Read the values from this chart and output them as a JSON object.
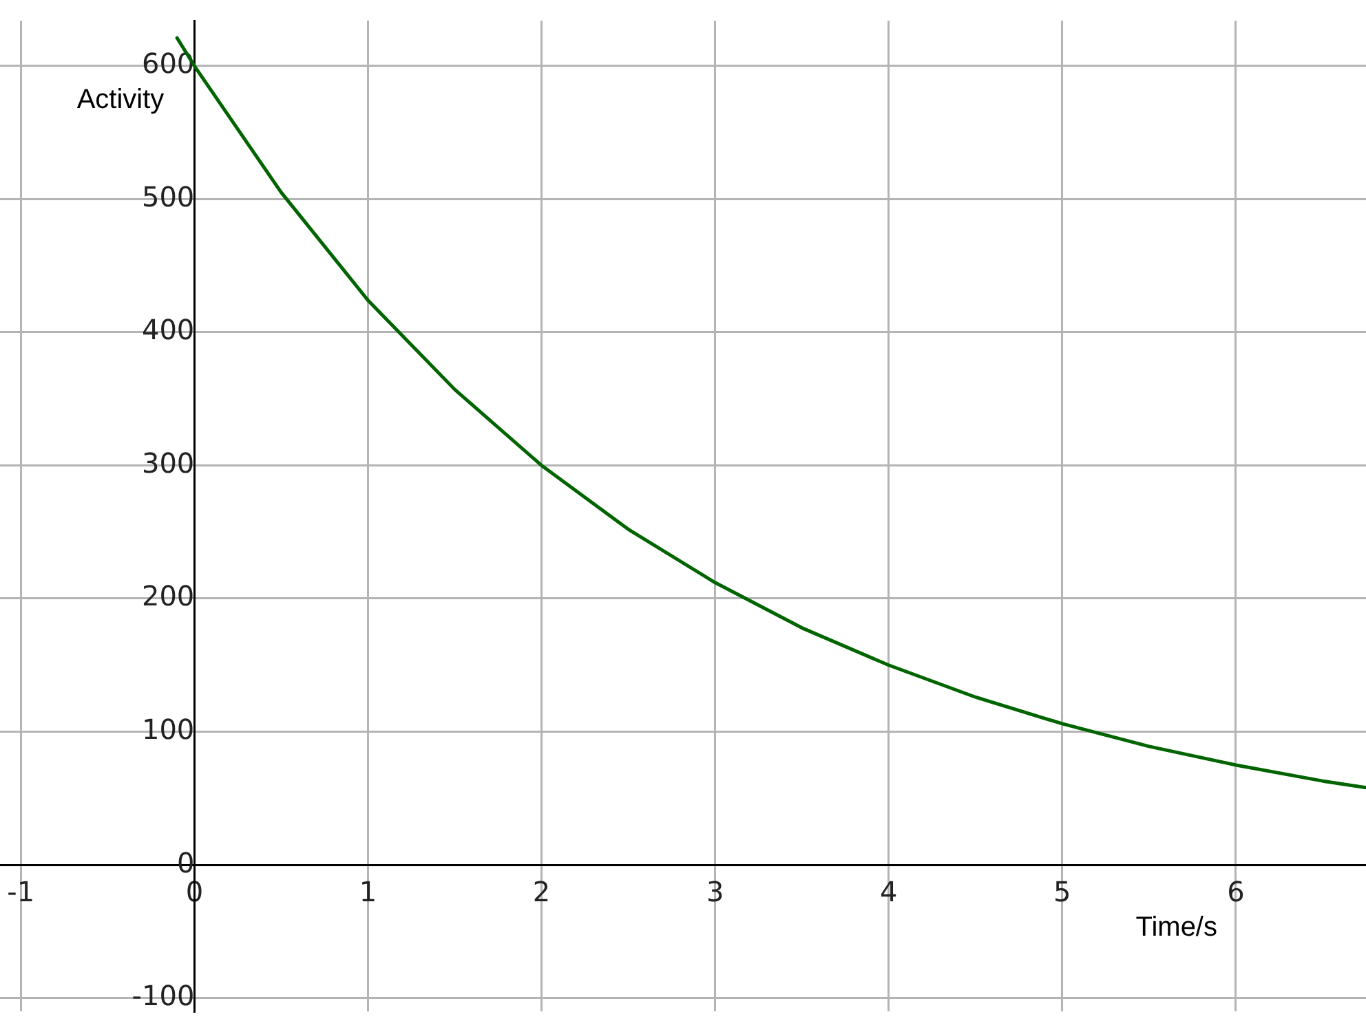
{
  "chart_data": {
    "type": "line",
    "xlabel": "Time/s",
    "ylabel": "Activity",
    "x": [
      -0.1,
      0,
      0.5,
      1,
      1.5,
      2,
      2.5,
      3,
      3.5,
      4,
      4.5,
      5,
      5.5,
      6,
      6.5,
      6.75
    ],
    "series": [
      {
        "color": "#006400",
        "values": [
          621,
          600,
          505,
          424,
          357,
          300,
          252,
          212,
          178,
          150,
          126,
          106,
          89,
          75,
          63,
          58
        ]
      }
    ],
    "xlim": [
      -1.12,
      6.75
    ],
    "xticks": [
      -1,
      0,
      1,
      2,
      3,
      4,
      5,
      6
    ],
    "ylim": [
      -110,
      634
    ],
    "yticks": [
      -100,
      0,
      100,
      200,
      300,
      400,
      500,
      600
    ],
    "grid": true,
    "legend": false,
    "marker": "none",
    "line_style": "solid"
  }
}
